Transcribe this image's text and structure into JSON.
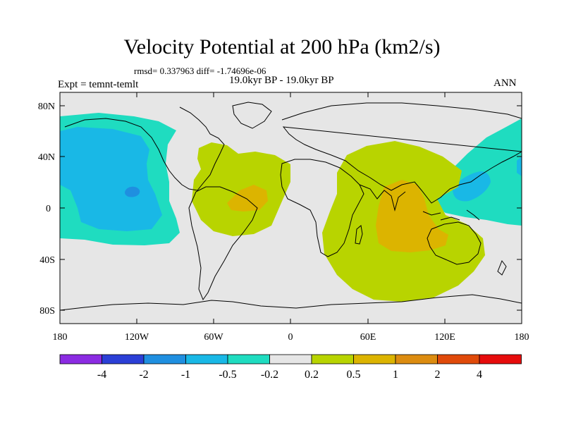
{
  "title": "Velocity Potential at 200 hPa (km2/s)",
  "stats": "rmsd= 0.337963 diff= -1.74696e-06",
  "period": "19.0kyr BP - 19.0kyr BP",
  "experiment": "Expt = temnt-temlt",
  "season": "ANN",
  "lat_labels": [
    "80N",
    "40N",
    "0",
    "40S",
    "80S"
  ],
  "lon_labels": [
    "180",
    "120W",
    "60W",
    "0",
    "60E",
    "120E",
    "180"
  ],
  "colorbar": {
    "colors": [
      "#8b2be2",
      "#2b3fd6",
      "#1f8fe0",
      "#19b8e6",
      "#1fdcc0",
      "#e6e6e6",
      "#b8d400",
      "#dcb400",
      "#dc8c10",
      "#e04a0a",
      "#e60c0c"
    ],
    "labels": [
      "-4",
      "-2",
      "-1",
      "-0.5",
      "-0.2",
      "0.2",
      "0.5",
      "1",
      "2",
      "4"
    ]
  },
  "colors": {
    "background": "#e6e6e6",
    "neg_04": "#1fdcc0",
    "neg_1": "#19b8e6",
    "neg_2": "#1f8fe0",
    "pos_04": "#b8d400",
    "pos_1": "#dcb400"
  }
}
